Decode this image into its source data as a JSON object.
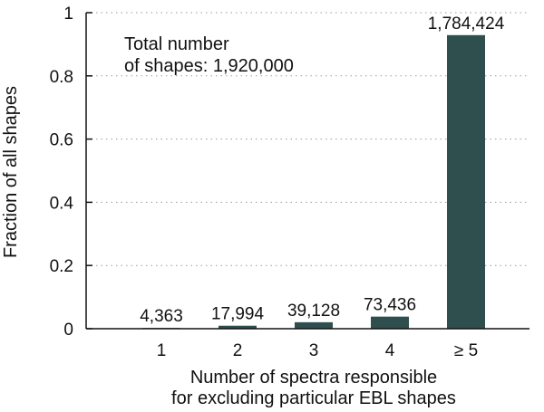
{
  "chart_data": {
    "type": "bar",
    "categories": [
      "1",
      "2",
      "3",
      "4",
      "≥ 5"
    ],
    "values": [
      0.0023,
      0.0094,
      0.0204,
      0.0382,
      0.929
    ],
    "data_labels": [
      "4,363",
      "17,994",
      "39,128",
      "73,436",
      "1,784,424"
    ],
    "ylabel": "Fraction of all shapes",
    "xlabel_lines": [
      "Number of spectra responsible",
      "for excluding particular EBL shapes"
    ],
    "ylim": [
      0,
      1
    ],
    "yticks": [
      0,
      0.2,
      0.4,
      0.6,
      0.8,
      1
    ],
    "ytick_labels": [
      "0",
      "0.2",
      "0.4",
      "0.6",
      "0.8",
      "1"
    ],
    "annotation_lines": [
      "Total number",
      "of shapes: 1,920,000"
    ],
    "grid": "horizontal dotted",
    "bar_color": "#2f4f4f"
  }
}
